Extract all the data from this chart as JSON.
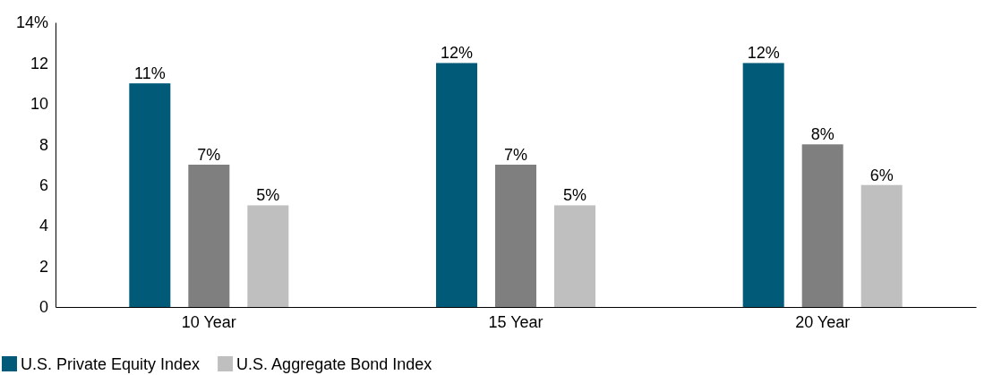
{
  "chart_data": {
    "type": "bar",
    "categories": [
      "10 Year",
      "15 Year",
      "20 Year"
    ],
    "series": [
      {
        "name": "U.S. Private Equity Index",
        "color": "#005a78",
        "values": [
          11,
          12,
          12
        ],
        "value_labels": [
          "11%",
          "12%",
          "12%"
        ]
      },
      {
        "color": "#7f7f7f",
        "values": [
          7,
          7,
          8
        ],
        "value_labels": [
          "7%",
          "7%",
          "8%"
        ]
      },
      {
        "name": "U.S. Aggregate Bond Index",
        "color": "#bfbfbf",
        "values": [
          5,
          5,
          6
        ],
        "value_labels": [
          "5%",
          "5%",
          "6%"
        ]
      }
    ],
    "ylim": [
      0,
      14
    ],
    "yticks": [
      0,
      2,
      4,
      6,
      8,
      10,
      12,
      {
        "value": 14,
        "label": "14%"
      }
    ],
    "grid": false,
    "legend": "bottom"
  }
}
